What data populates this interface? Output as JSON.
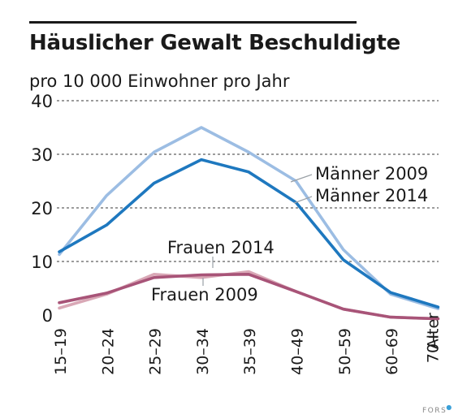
{
  "header": {
    "title": "Häuslicher Gewalt Beschuldigte",
    "subtitle": "pro 10 000 Einwohner pro Jahr"
  },
  "brand": {
    "name": "FORS"
  },
  "colors": {
    "maenner_2009": "#9cbde3",
    "maenner_2014": "#1e78bf",
    "frauen_2009": "#d9a8b6",
    "frauen_2014": "#a85478"
  },
  "chart_data": {
    "type": "line",
    "title": "Häuslicher Gewalt Beschuldigte",
    "ylabel": "pro 10 000 Einwohner pro Jahr",
    "xlabel": "",
    "categories": [
      "15–19",
      "20–24",
      "25–29",
      "30–34",
      "35–39",
      "40–49",
      "50–59",
      "60–69",
      "70+ Alter"
    ],
    "yticks": [
      0,
      10,
      20,
      30,
      40
    ],
    "ylim": [
      0,
      40
    ],
    "grid": true,
    "series": [
      {
        "name": "Männer 2009",
        "color": "#9cbde3",
        "values": [
          11.3,
          22.3,
          30.4,
          35.0,
          30.4,
          25.0,
          12.2,
          3.9,
          1.2
        ]
      },
      {
        "name": "Männer 2014",
        "color": "#1e78bf",
        "values": [
          11.8,
          16.8,
          24.6,
          29.0,
          26.7,
          21.0,
          10.3,
          4.2,
          1.5
        ]
      },
      {
        "name": "Frauen 2014",
        "color": "#a85478",
        "values": [
          2.3,
          4.1,
          7.0,
          7.5,
          7.6,
          4.4,
          1.1,
          -0.4,
          -0.7
        ]
      },
      {
        "name": "Frauen 2009",
        "color": "#d9a8b6",
        "values": [
          1.3,
          3.9,
          7.6,
          7.0,
          8.1,
          4.4,
          1.1,
          -0.4,
          -0.7
        ]
      }
    ]
  }
}
